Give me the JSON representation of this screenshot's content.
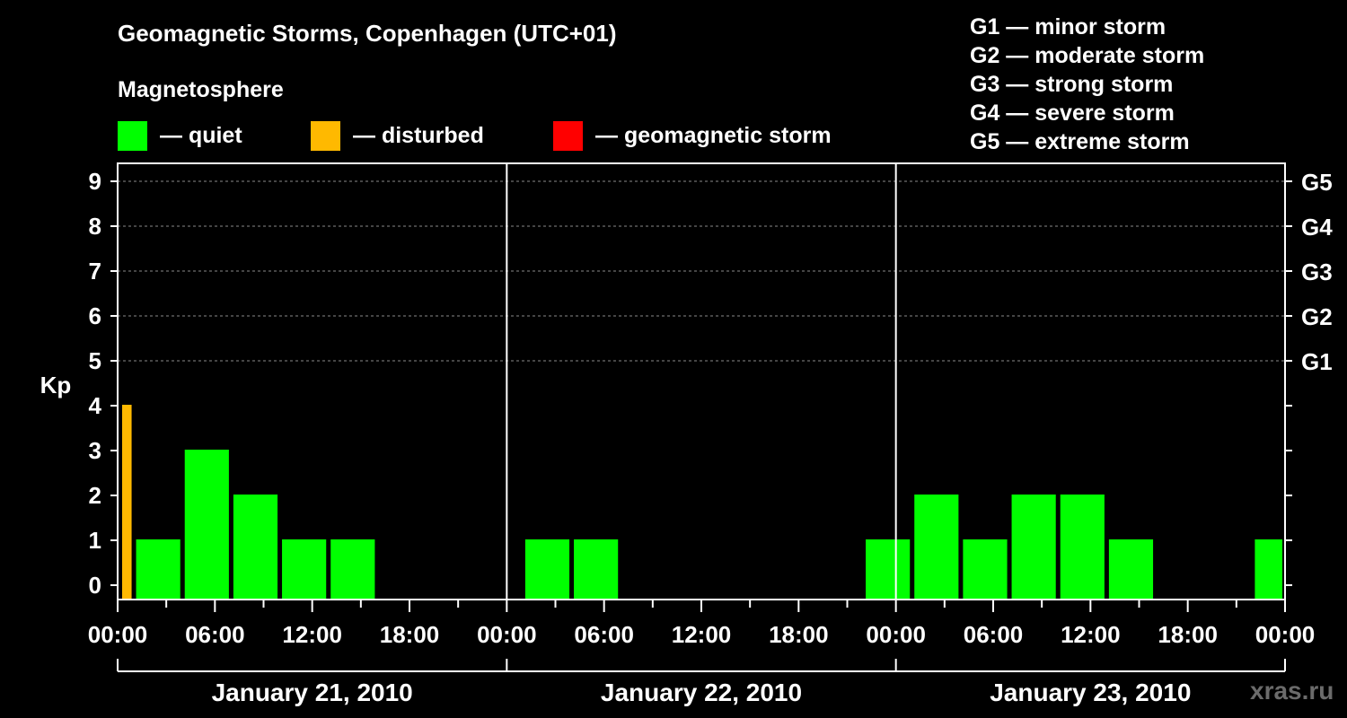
{
  "chart_data": {
    "type": "bar",
    "title": "Geomagnetic Storms, Copenhagen (UTC+01)",
    "subtitle": "Magnetosphere",
    "ylabel": "Kp",
    "ylim": [
      0,
      9
    ],
    "yticks": [
      "0",
      "1",
      "2",
      "3",
      "4",
      "5",
      "6",
      "7",
      "8",
      "9"
    ],
    "right_ticks": [
      {
        "kp": 5,
        "label": "G1"
      },
      {
        "kp": 6,
        "label": "G2"
      },
      {
        "kp": 7,
        "label": "G3"
      },
      {
        "kp": 8,
        "label": "G4"
      },
      {
        "kp": 9,
        "label": "G5"
      }
    ],
    "xticks": [
      "00:00",
      "06:00",
      "12:00",
      "18:00",
      "00:00",
      "06:00",
      "12:00",
      "18:00",
      "00:00",
      "06:00",
      "12:00",
      "18:00",
      "00:00"
    ],
    "days": [
      "January 21, 2010",
      "January 22, 2010",
      "January 23, 2010"
    ],
    "hours_total": 72,
    "grid": "dashed horizontal at Kp 5-9",
    "legend": [
      {
        "label": "— quiet",
        "color": "#00ff00"
      },
      {
        "label": "— disturbed",
        "color": "#ffb900"
      },
      {
        "label": "— geomagnetic storm",
        "color": "#ff0000"
      }
    ],
    "storm_levels": [
      "G1 — minor storm",
      "G2 — moderate storm",
      "G3 — strong storm",
      "G4 — severe storm",
      "G5 — extreme storm"
    ],
    "bars": [
      {
        "start_hour": 0,
        "end_hour": 1,
        "kp": 4,
        "status": "disturbed"
      },
      {
        "start_hour": 1,
        "end_hour": 4,
        "kp": 1,
        "status": "quiet"
      },
      {
        "start_hour": 4,
        "end_hour": 7,
        "kp": 3,
        "status": "quiet"
      },
      {
        "start_hour": 7,
        "end_hour": 10,
        "kp": 2,
        "status": "quiet"
      },
      {
        "start_hour": 10,
        "end_hour": 13,
        "kp": 1,
        "status": "quiet"
      },
      {
        "start_hour": 13,
        "end_hour": 16,
        "kp": 1,
        "status": "quiet"
      },
      {
        "start_hour": 25,
        "end_hour": 28,
        "kp": 1,
        "status": "quiet"
      },
      {
        "start_hour": 28,
        "end_hour": 31,
        "kp": 1,
        "status": "quiet"
      },
      {
        "start_hour": 46,
        "end_hour": 49,
        "kp": 1,
        "status": "quiet"
      },
      {
        "start_hour": 49,
        "end_hour": 52,
        "kp": 2,
        "status": "quiet"
      },
      {
        "start_hour": 52,
        "end_hour": 55,
        "kp": 1,
        "status": "quiet"
      },
      {
        "start_hour": 55,
        "end_hour": 58,
        "kp": 2,
        "status": "quiet"
      },
      {
        "start_hour": 58,
        "end_hour": 61,
        "kp": 2,
        "status": "quiet"
      },
      {
        "start_hour": 61,
        "end_hour": 64,
        "kp": 1,
        "status": "quiet"
      },
      {
        "start_hour": 70,
        "end_hour": 72,
        "kp": 1,
        "status": "quiet"
      }
    ]
  },
  "watermark": "xras.ru"
}
